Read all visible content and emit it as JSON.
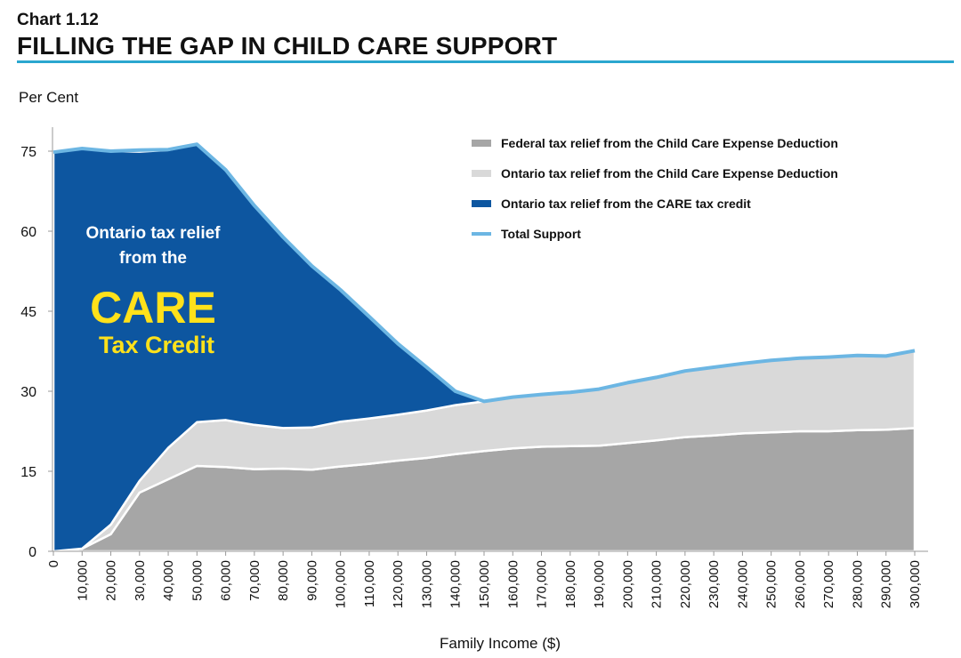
{
  "header": {
    "chart_number": "Chart 1.12",
    "title": "FILLING THE GAP IN CHILD CARE SUPPORT"
  },
  "colors": {
    "accent_rule": "#2aa7cf",
    "federal": "#a6a6a6",
    "ontario_cced": "#d9d9d9",
    "care_credit": "#0d56a0",
    "total_line": "#6cb6e3",
    "annotation_highlight": "#ffe11a"
  },
  "chart_data": {
    "type": "area",
    "title": "FILLING THE GAP IN CHILD CARE SUPPORT",
    "ylabel": "Per Cent",
    "xlabel": "Family Income ($)",
    "ylim": [
      0,
      80
    ],
    "y_ticks": [
      "0",
      "15",
      "30",
      "45",
      "60",
      "75"
    ],
    "y_tick_values": [
      0,
      15,
      30,
      45,
      60,
      75
    ],
    "x": [
      0,
      10000,
      20000,
      30000,
      40000,
      50000,
      60000,
      70000,
      80000,
      90000,
      100000,
      110000,
      120000,
      130000,
      140000,
      150000,
      160000,
      170000,
      180000,
      190000,
      200000,
      210000,
      220000,
      230000,
      240000,
      250000,
      260000,
      270000,
      280000,
      290000,
      300000
    ],
    "x_tick_labels": [
      "0",
      "10,000",
      "20,000",
      "30,000",
      "40,000",
      "50,000",
      "60,000",
      "70,000",
      "80,000",
      "90,000",
      "100,000",
      "110,000",
      "120,000",
      "130,000",
      "140,000",
      "150,000",
      "160,000",
      "170,000",
      "180,000",
      "190,000",
      "200,000",
      "210,000",
      "220,000",
      "230,000",
      "240,000",
      "250,000",
      "260,000",
      "270,000",
      "280,000",
      "290,000",
      "300,000"
    ],
    "stacked": true,
    "grid": false,
    "legend_position": "top-right",
    "series": [
      {
        "name": "Federal tax relief from the Child Care Expense Deduction",
        "kind": "area",
        "values": [
          0,
          0.5,
          3.2,
          11,
          13.5,
          16,
          15.8,
          15.4,
          15.5,
          15.3,
          15.9,
          16.4,
          17,
          17.5,
          18.2,
          18.8,
          19.3,
          19.6,
          19.7,
          19.8,
          20.3,
          20.8,
          21.4,
          21.7,
          22.1,
          22.3,
          22.5,
          22.5,
          22.7,
          22.8,
          23.1
        ]
      },
      {
        "name": "Ontario tax relief from the Child Care Expense Deduction",
        "kind": "area",
        "values": [
          0,
          0,
          1.8,
          2.2,
          5.9,
          8.2,
          8.8,
          8.3,
          7.6,
          7.9,
          8.4,
          8.5,
          8.6,
          8.9,
          9.2,
          9.3,
          9.6,
          9.8,
          10.1,
          10.6,
          11.3,
          11.8,
          12.4,
          12.8,
          13.1,
          13.5,
          13.7,
          13.9,
          14.0,
          13.8,
          14.5
        ]
      },
      {
        "name": "Ontario tax relief from the CARE tax credit",
        "kind": "area",
        "values": [
          74.8,
          75,
          70,
          61.7,
          55.8,
          52.1,
          46.9,
          41.1,
          35.8,
          30.3,
          24.7,
          19.1,
          13.5,
          8.1,
          2.6,
          0,
          0,
          0,
          0,
          0,
          0,
          0,
          0,
          0,
          0,
          0,
          0,
          0,
          0,
          0,
          0
        ]
      },
      {
        "name": "Total Support",
        "kind": "line",
        "values": [
          74.8,
          75.5,
          75,
          75.2,
          75.3,
          76.3,
          71.5,
          64.8,
          58.9,
          53.5,
          49,
          44,
          38.9,
          34.5,
          30,
          28.1,
          28.9,
          29.4,
          29.8,
          30.4,
          31.6,
          32.6,
          33.8,
          34.5,
          35.2,
          35.8,
          36.2,
          36.4,
          36.7,
          36.6,
          37.6
        ]
      }
    ],
    "annotation": {
      "line1": "Ontario tax relief",
      "line2": "from the",
      "line3": "CARE",
      "line4": "Tax Credit"
    }
  }
}
